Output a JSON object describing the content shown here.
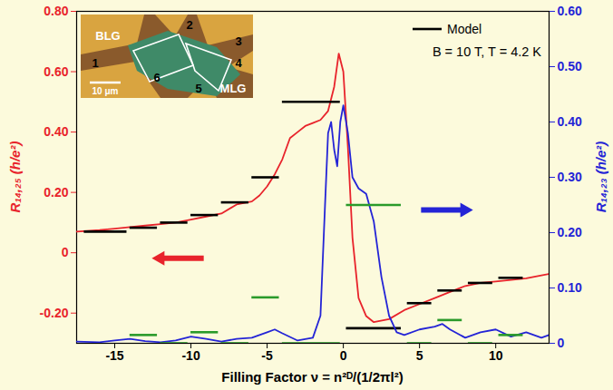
{
  "chart_data": {
    "type": "line",
    "x_label": "Filling Factor ν = n²ᴰ/(1/2πl²)",
    "y_label": "R₁₄,₂₅ (h/e²)",
    "y2_label": "R₁₄,₂₃ (h/e²)",
    "xlim": [
      -17.5,
      13.5
    ],
    "xticks": [
      -15,
      -10,
      -5,
      0,
      5,
      10
    ],
    "ylim": [
      -0.3,
      0.8
    ],
    "yticks": [
      {
        "value": -0.2,
        "label": "-0.20"
      },
      0,
      {
        "value": 0.2,
        "label": "0.20"
      },
      {
        "value": 0.4,
        "label": "0.40"
      },
      {
        "value": 0.6,
        "label": "0.60"
      },
      {
        "value": 0.8,
        "label": "0.80"
      }
    ],
    "y2lim": [
      0,
      0.6
    ],
    "y2ticks": [
      0,
      {
        "value": 0.1,
        "label": "0.10"
      },
      {
        "value": 0.2,
        "label": "0.20"
      },
      {
        "value": 0.3,
        "label": "0.30"
      },
      {
        "value": 0.4,
        "label": "0.40"
      },
      {
        "value": 0.5,
        "label": "0.50"
      },
      {
        "value": 0.6,
        "label": "0.60"
      }
    ],
    "legend": "top-right",
    "annotations": [
      "B = 10 T, T = 4.2 K"
    ],
    "inset": {
      "labels": [
        "BLG",
        "1",
        "2",
        "3",
        "4",
        "5",
        "6",
        "MLG",
        "10 μm"
      ]
    },
    "series": [
      {
        "type": "line",
        "color": "#e8232b",
        "x": [
          -17.5,
          -16,
          -15,
          -14,
          -13,
          -12,
          -11,
          -10,
          -9,
          -8,
          -7,
          -6,
          -5.5,
          -5,
          -4.5,
          -4,
          -3.5,
          -3,
          -2.5,
          -2,
          -1.5,
          -1,
          -0.6,
          -0.3,
          0,
          0.3,
          0.6,
          1,
          1.5,
          2,
          3,
          4,
          5,
          6,
          7,
          8,
          9,
          10,
          11,
          12,
          13,
          13.5
        ],
        "values": [
          0.07,
          0.075,
          0.08,
          0.085,
          0.09,
          0.095,
          0.1,
          0.11,
          0.12,
          0.13,
          0.16,
          0.17,
          0.19,
          0.22,
          0.26,
          0.31,
          0.38,
          0.4,
          0.42,
          0.43,
          0.44,
          0.47,
          0.55,
          0.66,
          0.6,
          0.35,
          0.05,
          -0.15,
          -0.21,
          -0.23,
          -0.22,
          -0.19,
          -0.17,
          -0.15,
          -0.13,
          -0.11,
          -0.1,
          -0.095,
          -0.09,
          -0.085,
          -0.075,
          -0.07
        ]
      },
      {
        "type": "line",
        "axis": "y2",
        "color": "#2424d6",
        "x": [
          -17.5,
          -16,
          -15,
          -14,
          -13,
          -12,
          -11,
          -10,
          -9,
          -8,
          -7,
          -6,
          -5,
          -4.5,
          -4,
          -3,
          -2,
          -1.5,
          -1.2,
          -1,
          -0.8,
          -0.6,
          -0.4,
          -0.2,
          0,
          0.3,
          0.6,
          1,
          1.5,
          2,
          2.5,
          3,
          3.5,
          4,
          5,
          6,
          6.5,
          7,
          8,
          9,
          10,
          11,
          12,
          13,
          13.5
        ],
        "values": [
          0.003,
          0.002,
          0.005,
          0.008,
          0.004,
          0.002,
          0.005,
          0.012,
          0.008,
          0.003,
          0.008,
          0.01,
          0.02,
          0.025,
          0.018,
          0.005,
          0.01,
          0.05,
          0.25,
          0.38,
          0.4,
          0.35,
          0.32,
          0.4,
          0.43,
          0.38,
          0.3,
          0.28,
          0.27,
          0.22,
          0.12,
          0.05,
          0.02,
          0.015,
          0.025,
          0.03,
          0.035,
          0.025,
          0.01,
          0.02,
          0.025,
          0.012,
          0.02,
          0.01,
          0.015
        ]
      },
      {
        "type": "segment",
        "name": "Model",
        "color": "#000000",
        "x_start": [
          -17,
          -14,
          -12,
          -10,
          -8,
          -6,
          -4,
          0.2,
          4.2,
          6.2,
          8.2,
          10.2
        ],
        "x_end": [
          -14.2,
          -12.2,
          -10.2,
          -8.2,
          -6.2,
          -4.2,
          -0.2,
          3.8,
          5.8,
          7.8,
          9.8,
          11.8
        ],
        "values": [
          0.07,
          0.083,
          0.1,
          0.125,
          0.167,
          0.25,
          0.5,
          -0.25,
          -0.167,
          -0.125,
          -0.1,
          -0.083
        ]
      },
      {
        "type": "segment",
        "axis": "y2",
        "color": "#2a9a2a",
        "x_start": [
          -14,
          -12,
          -10,
          -8,
          -6,
          -4,
          0.2,
          4.2,
          6.2,
          8.2,
          10.2
        ],
        "x_end": [
          -12.2,
          -10.2,
          -8.2,
          -6.2,
          -4.2,
          -0.2,
          3.8,
          5.8,
          7.8,
          9.8,
          11.8
        ],
        "values": [
          0.015,
          0,
          0.02,
          0,
          0.083,
          0,
          0.25,
          0,
          0.042,
          0,
          0.015
        ]
      }
    ]
  }
}
